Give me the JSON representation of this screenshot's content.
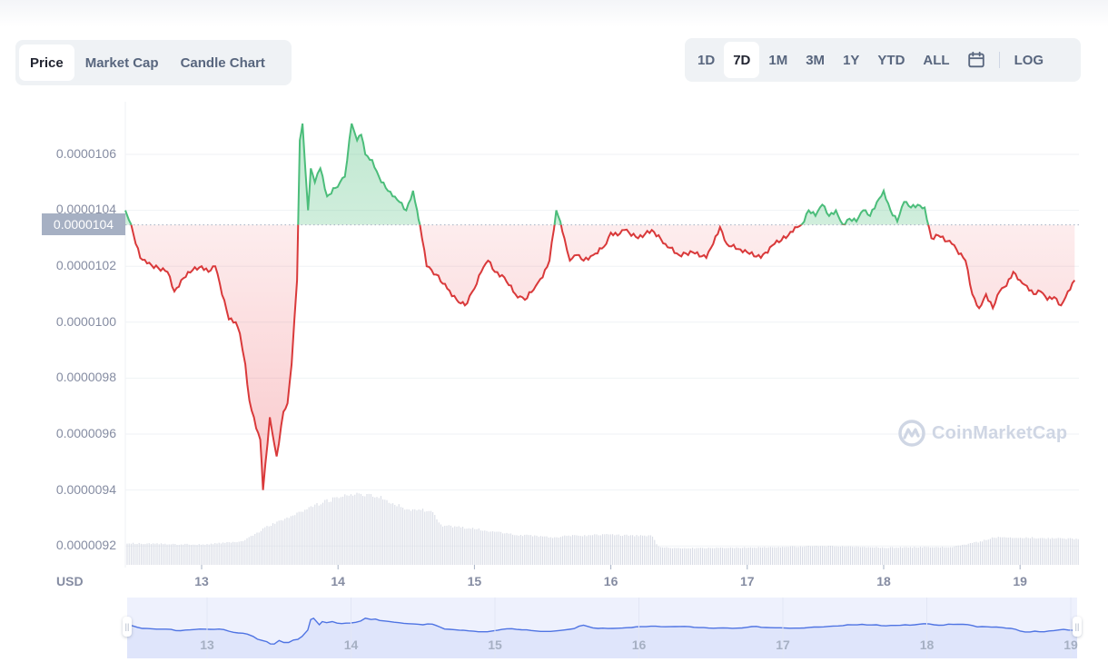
{
  "tabs": {
    "chart_type": [
      {
        "label": "Price",
        "active": true
      },
      {
        "label": "Market Cap",
        "active": false
      },
      {
        "label": "Candle Chart",
        "active": false
      }
    ],
    "ranges": [
      {
        "label": "1D",
        "active": false
      },
      {
        "label": "7D",
        "active": true
      },
      {
        "label": "1M",
        "active": false
      },
      {
        "label": "3M",
        "active": false
      },
      {
        "label": "1Y",
        "active": false
      },
      {
        "label": "YTD",
        "active": false
      },
      {
        "label": "ALL",
        "active": false
      }
    ],
    "calendar_icon": "calendar-icon",
    "log_label": "LOG"
  },
  "current_price_label": "0.0000104",
  "currency_label": "USD",
  "watermark": "CoinMarketCap",
  "colors": {
    "up": "#16c784",
    "up_line": "#4bbd7a",
    "down_line": "#d9393a",
    "navigator_line": "#4f74e3",
    "navigator_fill": "#dfe5fb",
    "volume_bar": "#d5d9e3",
    "grid": "#eff2f5",
    "axis_text": "#858ca2"
  },
  "chart_data": {
    "type": "line",
    "title": "",
    "xlabel": "",
    "ylabel": "USD",
    "reference_price": 1.04e-05,
    "ylim": [
      9.2e-06,
      1.07e-05
    ],
    "yticks": [
      "0.0000106",
      "0.0000104",
      "0.0000102",
      "0.0000100",
      "0.0000098",
      "0.0000096",
      "0.0000094",
      "0.0000092"
    ],
    "xticks": [
      "13",
      "14",
      "15",
      "16",
      "17",
      "18",
      "19"
    ],
    "grid": true,
    "legend": "none",
    "x_days": [
      12.45,
      12.55,
      12.6,
      12.75,
      12.8,
      12.9,
      13.0,
      13.05,
      13.1,
      13.2,
      13.25,
      13.28,
      13.32,
      13.35,
      13.4,
      13.43,
      13.45,
      13.5,
      13.55,
      13.6,
      13.63,
      13.66,
      13.7,
      13.72,
      13.74,
      13.78,
      13.8,
      13.83,
      13.87,
      13.92,
      13.98,
      14.05,
      14.1,
      14.14,
      14.17,
      14.2,
      14.25,
      14.3,
      14.35,
      14.4,
      14.45,
      14.5,
      14.55,
      14.58,
      14.6,
      14.65,
      14.72,
      14.8,
      14.87,
      14.93,
      15.0,
      15.05,
      15.1,
      15.15,
      15.22,
      15.3,
      15.37,
      15.45,
      15.5,
      15.55,
      15.6,
      15.63,
      15.66,
      15.7,
      15.75,
      15.8,
      15.87,
      15.95,
      16.0,
      16.05,
      16.1,
      16.2,
      16.3,
      16.4,
      16.5,
      16.6,
      16.7,
      16.75,
      16.8,
      16.85,
      16.95,
      17.0,
      17.1,
      17.2,
      17.3,
      17.35,
      17.4,
      17.45,
      17.5,
      17.55,
      17.6,
      17.65,
      17.7,
      17.75,
      17.8,
      17.85,
      17.9,
      17.95,
      18.0,
      18.05,
      18.1,
      18.15,
      18.2,
      18.25,
      18.3,
      18.35,
      18.4,
      18.5,
      18.6,
      18.65,
      18.7,
      18.75,
      18.8,
      18.85,
      18.9,
      18.95,
      19.0,
      19.05,
      19.1,
      19.15,
      19.2,
      19.25,
      19.3,
      19.35,
      19.4
    ],
    "series": [
      {
        "name": "Price",
        "values": [
          1.04e-05,
          1.023e-05,
          1.021e-05,
          1.018e-05,
          1.011e-05,
          1.018e-05,
          1.02e-05,
          1.018e-05,
          1.02e-05,
          1.001e-05,
          1e-05,
          9.96e-06,
          9.85e-06,
          9.72e-06,
          9.62e-06,
          9.58e-06,
          9.4e-06,
          9.66e-06,
          9.52e-06,
          9.68e-06,
          9.71e-06,
          9.85e-06,
          1.015e-05,
          1.065e-05,
          1.071e-05,
          1.04e-05,
          1.055e-05,
          1.05e-05,
          1.055e-05,
          1.045e-05,
          1.048e-05,
          1.052e-05,
          1.071e-05,
          1.065e-05,
          1.067e-05,
          1.06e-05,
          1.058e-05,
          1.052e-05,
          1.048e-05,
          1.045e-05,
          1.043e-05,
          1.04e-05,
          1.047e-05,
          1.04e-05,
          1.035e-05,
          1.02e-05,
          1.017e-05,
          1.012e-05,
          1.008e-05,
          1.006e-05,
          1.012e-05,
          1.018e-05,
          1.022e-05,
          1.018e-05,
          1.016e-05,
          1.01e-05,
          1.008e-05,
          1.013e-05,
          1.016e-05,
          1.022e-05,
          1.04e-05,
          1.036e-05,
          1.03e-05,
          1.022e-05,
          1.024e-05,
          1.022e-05,
          1.024e-05,
          1.027e-05,
          1.032e-05,
          1.031e-05,
          1.033e-05,
          1.03e-05,
          1.033e-05,
          1.028e-05,
          1.024e-05,
          1.025e-05,
          1.023e-05,
          1.028e-05,
          1.034e-05,
          1.028e-05,
          1.026e-05,
          1.025e-05,
          1.023e-05,
          1.028e-05,
          1.031e-05,
          1.034e-05,
          1.035e-05,
          1.04e-05,
          1.038e-05,
          1.042e-05,
          1.038e-05,
          1.04e-05,
          1.035e-05,
          1.037e-05,
          1.036e-05,
          1.04e-05,
          1.038e-05,
          1.043e-05,
          1.047e-05,
          1.04e-05,
          1.036e-05,
          1.043e-05,
          1.041e-05,
          1.042e-05,
          1.041e-05,
          1.03e-05,
          1.031e-05,
          1.028e-05,
          1.022e-05,
          1.01e-05,
          1.005e-05,
          1.01e-05,
          1.005e-05,
          1.011e-05,
          1.013e-05,
          1.018e-05,
          1.015e-05,
          1.013e-05,
          1.01e-05,
          1.011e-05,
          1.008e-05,
          1.009e-05,
          1.006e-05,
          1.011e-05,
          1.015e-05
        ]
      }
    ],
    "volume_profile": {
      "description": "relative volume bars (0-1) at bottom of chart",
      "x_days": [
        12.45,
        13.0,
        13.3,
        13.5,
        13.7,
        13.9,
        14.1,
        14.3,
        14.5,
        14.7,
        14.75,
        15.0,
        15.3,
        15.6,
        15.65,
        16.0,
        16.3,
        16.35,
        16.5,
        17.0,
        17.5,
        17.7,
        18.0,
        18.5,
        18.7,
        18.8,
        19.0,
        19.4
      ],
      "values": [
        0.3,
        0.28,
        0.33,
        0.55,
        0.72,
        0.88,
        0.98,
        0.95,
        0.78,
        0.75,
        0.55,
        0.5,
        0.42,
        0.38,
        0.4,
        0.42,
        0.4,
        0.25,
        0.23,
        0.24,
        0.26,
        0.26,
        0.24,
        0.25,
        0.32,
        0.38,
        0.38,
        0.36
      ]
    }
  },
  "navigator": {
    "xticks": [
      "13",
      "14",
      "15",
      "16",
      "17",
      "18",
      "19"
    ],
    "left_handle": "left-range-handle",
    "right_handle": "right-range-handle"
  }
}
